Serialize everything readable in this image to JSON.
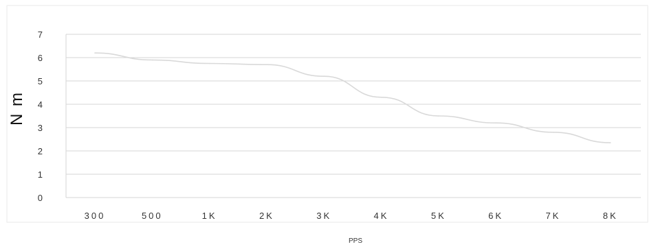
{
  "chart_data": {
    "type": "line",
    "title": "",
    "xlabel": "PPS",
    "ylabel": "N m",
    "categories": [
      "300",
      "500",
      "1K",
      "2K",
      "3K",
      "4K",
      "5K",
      "6K",
      "7K",
      "8K"
    ],
    "y_ticks": [
      0,
      1,
      2,
      3,
      4,
      5,
      6,
      7
    ],
    "ylim": [
      0,
      7
    ],
    "grid": true,
    "legend": "none",
    "series": [
      {
        "values": [
          6.2,
          5.9,
          5.75,
          5.7,
          5.2,
          4.3,
          3.5,
          3.2,
          2.8,
          2.35
        ],
        "color": "#d9d9d9"
      }
    ],
    "colors": {
      "grid": "#d6d6d6",
      "frame": "#eaeaea",
      "plot_bg": "#ffffff"
    }
  }
}
